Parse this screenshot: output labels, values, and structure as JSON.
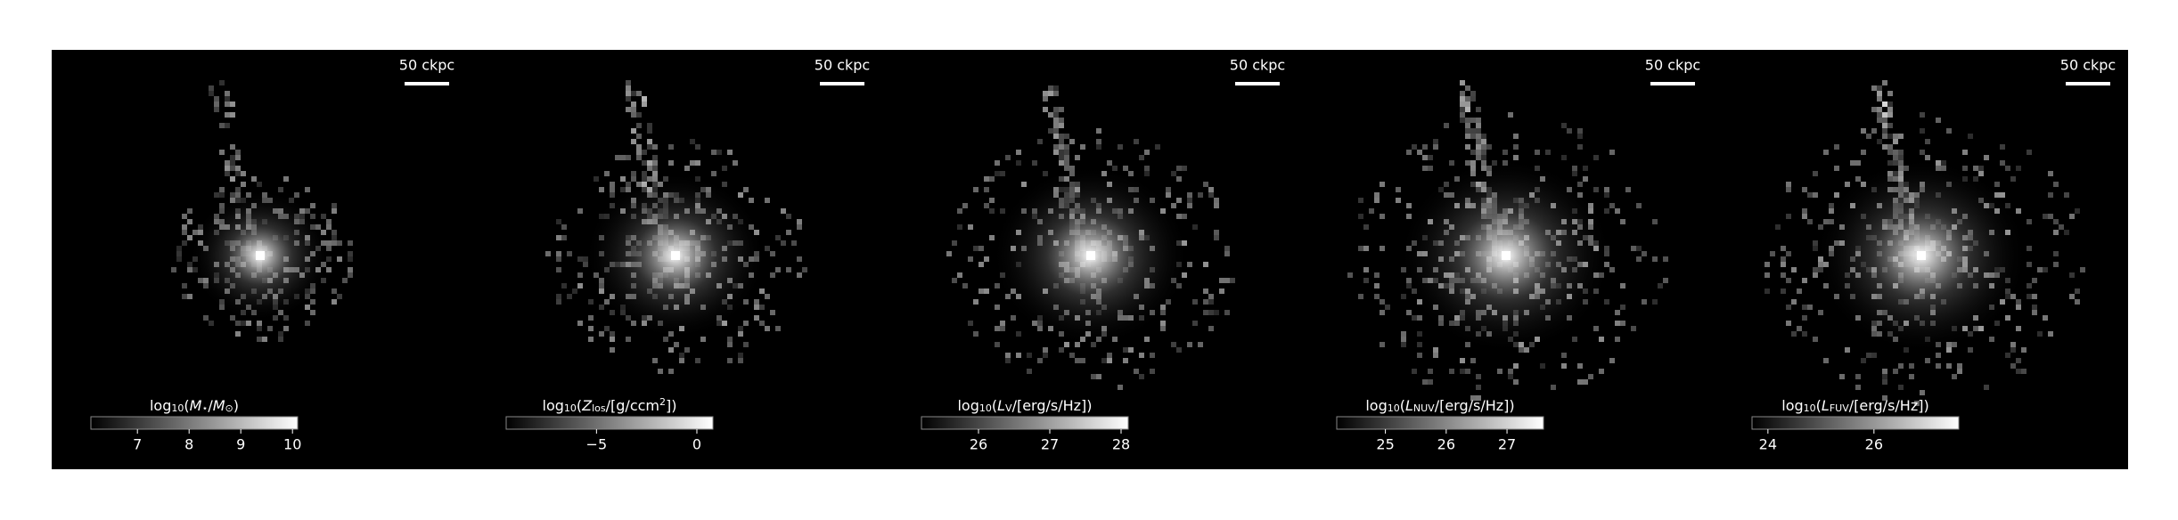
{
  "chart_data": [
    {
      "type": "image",
      "scale_bar": "50 ckpc",
      "colorbar_label": [
        {
          "text": "log"
        },
        {
          "text": "10",
          "style": "sub"
        },
        {
          "text": "("
        },
        {
          "text": "M",
          "style": "i"
        },
        {
          "text": "⋆",
          "style": "sub"
        },
        {
          "text": "/"
        },
        {
          "text": "M",
          "style": "i"
        },
        {
          "text": "⊙",
          "style": "sub"
        },
        {
          "text": ")"
        }
      ],
      "clim": [
        6.1,
        10.1
      ],
      "cticks": [
        7,
        8,
        9,
        10
      ],
      "spread": 0.55
    },
    {
      "type": "image",
      "scale_bar": "50 ckpc",
      "colorbar_label": [
        {
          "text": "log"
        },
        {
          "text": "10",
          "style": "sub"
        },
        {
          "text": "("
        },
        {
          "text": "Z",
          "style": "i"
        },
        {
          "text": "los",
          "style": "sub"
        },
        {
          "text": "/[g/ccm"
        },
        {
          "text": "2",
          "style": "sup"
        },
        {
          "text": "])"
        }
      ],
      "clim": [
        -9.5,
        0.8
      ],
      "cticks": [
        {
          "value": -5,
          "label": "−5"
        },
        0
      ],
      "spread": 0.8
    },
    {
      "type": "image",
      "scale_bar": "50 ckpc",
      "colorbar_label": [
        {
          "text": "log"
        },
        {
          "text": "10",
          "style": "sub"
        },
        {
          "text": "("
        },
        {
          "text": "L",
          "style": "i"
        },
        {
          "text": "V",
          "style": "sub"
        },
        {
          "text": "/[erg/s/Hz])"
        }
      ],
      "clim": [
        25.2,
        28.1
      ],
      "cticks": [
        26,
        27,
        28
      ],
      "spread": 0.9
    },
    {
      "type": "image",
      "scale_bar": "50 ckpc",
      "colorbar_label": [
        {
          "text": "log"
        },
        {
          "text": "10",
          "style": "sub"
        },
        {
          "text": "("
        },
        {
          "text": "L",
          "style": "i"
        },
        {
          "text": "NUV",
          "style": "sub"
        },
        {
          "text": "/[erg/s/Hz])"
        }
      ],
      "clim": [
        24.2,
        27.6
      ],
      "cticks": [
        25,
        26,
        27
      ],
      "spread": 1.0
    },
    {
      "type": "image",
      "scale_bar": "50 ckpc",
      "colorbar_label": [
        {
          "text": "log"
        },
        {
          "text": "10",
          "style": "sub"
        },
        {
          "text": "("
        },
        {
          "text": "L",
          "style": "i"
        },
        {
          "text": "FUV",
          "style": "sub"
        },
        {
          "text": "/[erg/s/Hz])"
        }
      ],
      "clim": [
        23.7,
        27.6
      ],
      "cticks": [
        24,
        26
      ],
      "spread": 1.0
    }
  ]
}
